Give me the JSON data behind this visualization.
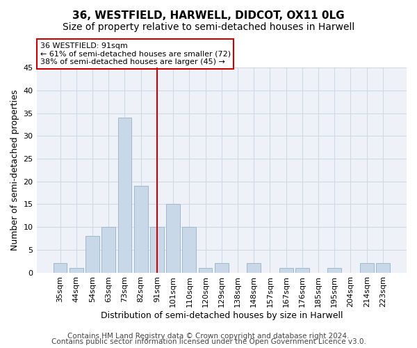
{
  "title": "36, WESTFIELD, HARWELL, DIDCOT, OX11 0LG",
  "subtitle": "Size of property relative to semi-detached houses in Harwell",
  "xlabel": "Distribution of semi-detached houses by size in Harwell",
  "ylabel": "Number of semi-detached properties",
  "bar_color": "#c8d8e8",
  "bar_edge_color": "#a0b8cc",
  "categories": [
    "35sqm",
    "44sqm",
    "54sqm",
    "63sqm",
    "73sqm",
    "82sqm",
    "91sqm",
    "101sqm",
    "110sqm",
    "120sqm",
    "129sqm",
    "138sqm",
    "148sqm",
    "157sqm",
    "167sqm",
    "176sqm",
    "185sqm",
    "195sqm",
    "204sqm",
    "214sqm",
    "223sqm"
  ],
  "values": [
    2,
    1,
    8,
    10,
    34,
    19,
    10,
    15,
    10,
    1,
    2,
    0,
    2,
    0,
    1,
    1,
    0,
    1,
    0,
    2,
    2
  ],
  "ylim": [
    0,
    45
  ],
  "yticks": [
    0,
    5,
    10,
    15,
    20,
    25,
    30,
    35,
    40,
    45
  ],
  "annotation_title": "36 WESTFIELD: 91sqm",
  "annotation_line1": "← 61% of semi-detached houses are smaller (72)",
  "annotation_line2": "38% of semi-detached houses are larger (45) →",
  "annotation_box_color": "#ffffff",
  "annotation_box_edge": "#cc0000",
  "grid_color": "#d0d8e8",
  "background_color": "#eef2f8",
  "footer1": "Contains HM Land Registry data © Crown copyright and database right 2024.",
  "footer2": "Contains public sector information licensed under the Open Government Licence v3.0.",
  "red_line_color": "#cc0000",
  "title_fontsize": 11,
  "subtitle_fontsize": 10,
  "xlabel_fontsize": 9,
  "ylabel_fontsize": 9,
  "tick_fontsize": 8,
  "annotation_fontsize": 8,
  "footer_fontsize": 7.5
}
